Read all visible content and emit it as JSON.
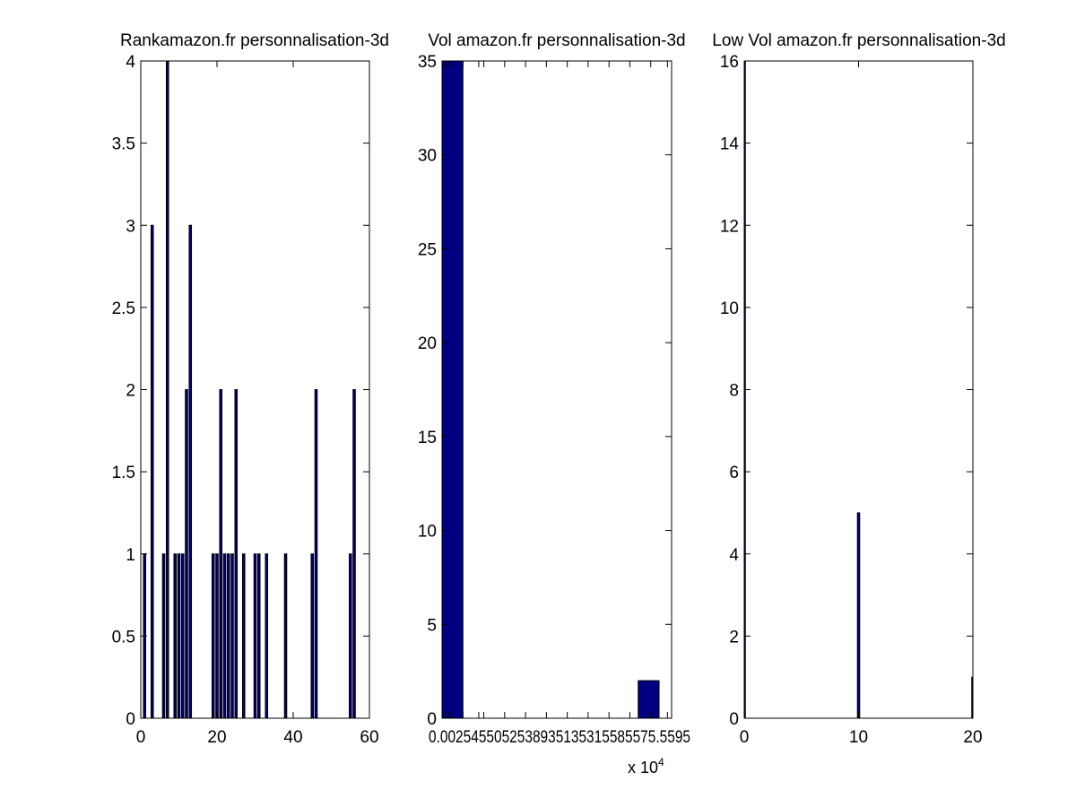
{
  "colors": {
    "bar_fill": "#000080",
    "bar_edge": "#000000",
    "axis": "#000000",
    "background": "#ffffff"
  },
  "chart_data": [
    {
      "type": "bar",
      "title": "Rankamazon.fr personnalisation-3d",
      "xlabel": "",
      "ylabel": "",
      "xlim": [
        0,
        60
      ],
      "ylim": [
        0,
        4
      ],
      "bar_width": 0.6,
      "grid": false,
      "x_ticks": [
        "0",
        "20",
        "40",
        "60"
      ],
      "y_ticks": [
        "0",
        "0.5",
        "1",
        "1.5",
        "2",
        "2.5",
        "3",
        "3.5",
        "4"
      ],
      "x": [
        1,
        3,
        6,
        7,
        9,
        10,
        11,
        12,
        13,
        19,
        20,
        21,
        22,
        23,
        24,
        25,
        27,
        30,
        31,
        33,
        38,
        45,
        46,
        55,
        56
      ],
      "values": [
        1,
        3,
        1,
        4,
        1,
        1,
        1,
        2,
        3,
        1,
        1,
        2,
        1,
        1,
        1,
        2,
        1,
        1,
        1,
        1,
        1,
        1,
        2,
        1,
        2
      ]
    },
    {
      "type": "bar",
      "title": "Vol amazon.fr personnalisation-3d",
      "xlabel": "",
      "ylabel": "",
      "x_exponent_label": "x 10",
      "x_exponent_power": "4",
      "xlim": [
        0,
        5.5
      ],
      "ylim": [
        0,
        35
      ],
      "grid": false,
      "x_ticks": [
        "0.0025",
        "0.1",
        "0.2",
        "0.5",
        "0.88",
        "1",
        "1.5",
        "2",
        "2.5",
        "3",
        "3.5",
        "4",
        "4.5",
        "5",
        "5.4",
        "5.95"
      ],
      "x_ticks_display": "0.0025455052538935135315585575.5595",
      "y_ticks": [
        "0",
        "5",
        "10",
        "15",
        "20",
        "25",
        "30",
        "35"
      ],
      "x": [
        0.25,
        4.95
      ],
      "values": [
        35,
        2
      ],
      "bar_width": 0.5
    },
    {
      "type": "bar",
      "title": "Low Vol amazon.fr personnalisation-3d",
      "xlabel": "",
      "ylabel": "",
      "xlim": [
        0,
        20
      ],
      "ylim": [
        0,
        16
      ],
      "bar_width": 0.2,
      "grid": false,
      "x_ticks": [
        "0",
        "10",
        "20"
      ],
      "y_ticks": [
        "0",
        "2",
        "4",
        "6",
        "8",
        "10",
        "12",
        "14",
        "16"
      ],
      "x": [
        0,
        10,
        20
      ],
      "values": [
        16,
        5,
        1
      ]
    }
  ]
}
